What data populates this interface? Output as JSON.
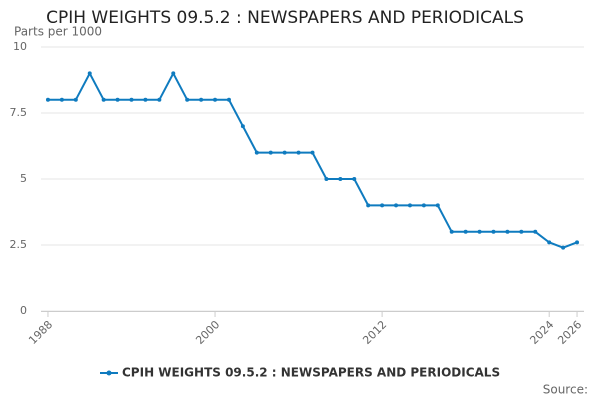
{
  "chart_data": {
    "type": "line",
    "title": "CPIH WEIGHTS 09.5.2 : NEWSPAPERS AND PERIODICALS",
    "y_label": "Parts per 1000",
    "source": "Source:",
    "x": [
      1988,
      1989,
      1990,
      1991,
      1992,
      1993,
      1994,
      1995,
      1996,
      1997,
      1998,
      1999,
      2000,
      2001,
      2002,
      2003,
      2004,
      2005,
      2006,
      2007,
      2008,
      2009,
      2010,
      2011,
      2012,
      2013,
      2014,
      2015,
      2016,
      2017,
      2018,
      2019,
      2020,
      2021,
      2022,
      2023,
      2024,
      2025,
      2026
    ],
    "series": [
      {
        "name": "CPIH WEIGHTS 09.5.2 : NEWSPAPERS AND PERIODICALS",
        "color": "#0f7bbf",
        "values": [
          8,
          8,
          8,
          9,
          8,
          8,
          8,
          8,
          8,
          9,
          8,
          8,
          8,
          8,
          7,
          6,
          6,
          6,
          6,
          6,
          5,
          5,
          5,
          4,
          4,
          4,
          4,
          4,
          4,
          3,
          3,
          3,
          3,
          3,
          3,
          3,
          2.6,
          2.4,
          2.6
        ]
      }
    ],
    "xlim": [
      1987.5,
      2026.5
    ],
    "xticks": [
      1988,
      2000,
      2012,
      2024,
      2026
    ],
    "ylim": [
      0,
      10
    ],
    "yticks": [
      0,
      2.5,
      5,
      7.5,
      10
    ],
    "grid": true
  }
}
